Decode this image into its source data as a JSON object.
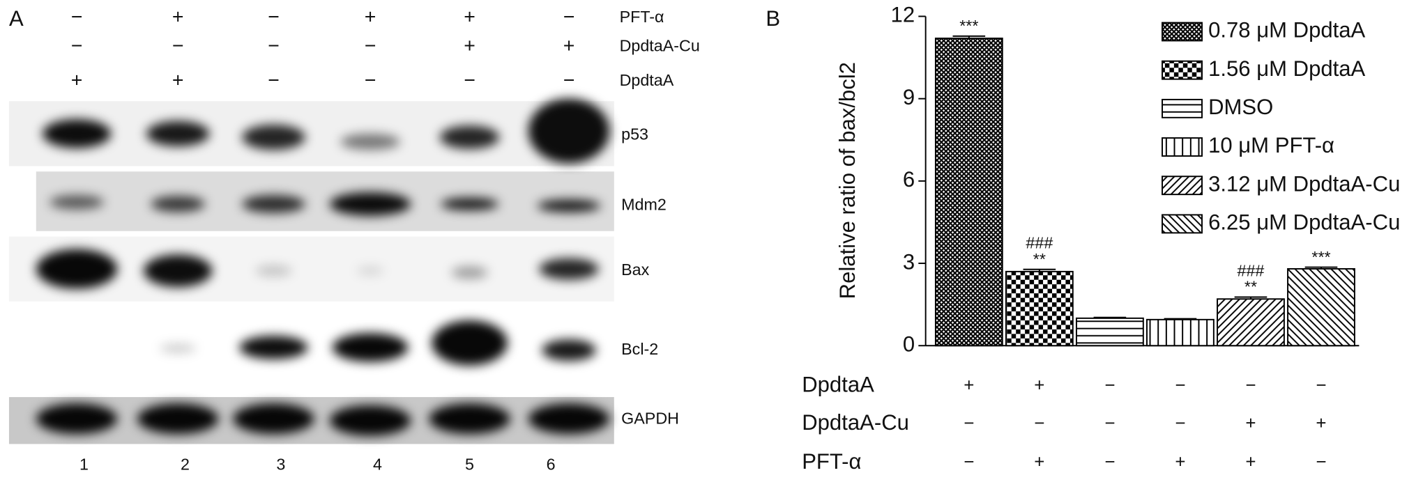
{
  "panel_a": {
    "label": "A",
    "treatments": [
      {
        "label": "PFT-α",
        "signs": [
          "−",
          "+",
          "−",
          "+",
          "+",
          "−"
        ]
      },
      {
        "label": "DpdtaA-Cu",
        "signs": [
          "−",
          "−",
          "−",
          "−",
          "+",
          "+"
        ]
      },
      {
        "label": "DpdtaA",
        "signs": [
          "+",
          "+",
          "−",
          "−",
          "−",
          "−"
        ]
      }
    ],
    "bands": [
      "p53",
      "Mdm2",
      "Bax",
      "Bcl-2",
      "GAPDH"
    ],
    "lanes": [
      "1",
      "2",
      "3",
      "4",
      "5",
      "6"
    ]
  },
  "chart_data": {
    "type": "bar",
    "panel_label": "B",
    "y_label": "Relative ratio of bax/bcl2",
    "ylim": [
      0,
      12
    ],
    "yticks": [
      0,
      3,
      6,
      9,
      12
    ],
    "series": [
      {
        "name": "0.78 μM DpdtaA",
        "pattern": "crosshatch",
        "values": [
          11.2
        ],
        "errors": [
          0.08
        ],
        "annotations": [
          "***"
        ]
      },
      {
        "name": "1.56 μM DpdtaA",
        "pattern": "checker",
        "values": [
          2.7
        ],
        "errors": [
          0.08
        ],
        "annotations": [
          "###",
          "**"
        ]
      },
      {
        "name": "DMSO",
        "pattern": "horizontal",
        "values": [
          1.0
        ],
        "errors": [
          0.03
        ]
      },
      {
        "name": "10 μM PFT-α",
        "pattern": "vertical",
        "values": [
          0.95
        ],
        "errors": [
          0.03
        ]
      },
      {
        "name": "3.12 μM DpdtaA-Cu",
        "pattern": "diagonal-up",
        "values": [
          1.7
        ],
        "errors": [
          0.07
        ],
        "annotations": [
          "###",
          "**"
        ]
      },
      {
        "name": "6.25 μM DpdtaA-Cu",
        "pattern": "diagonal-down",
        "values": [
          2.8
        ],
        "errors": [
          0.06
        ],
        "annotations": [
          "***"
        ]
      }
    ],
    "conditions": [
      {
        "label": "DpdtaA",
        "signs": [
          "+",
          "+",
          "−",
          "−",
          "−",
          "−"
        ]
      },
      {
        "label": "DpdtaA-Cu",
        "signs": [
          "−",
          "−",
          "−",
          "−",
          "+",
          "+"
        ]
      },
      {
        "label": "PFT-α",
        "signs": [
          "−",
          "+",
          "−",
          "+",
          "+",
          "−"
        ]
      }
    ]
  }
}
